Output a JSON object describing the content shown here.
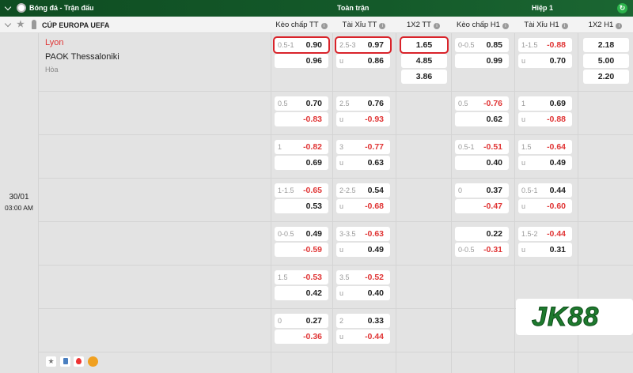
{
  "header": {
    "sport": "Bóng đá - Trận đấu",
    "full_time": "Toàn trận",
    "half": "Hiệp 1"
  },
  "league": "CÚP EUROPA UEFA",
  "columns": [
    "Kèo chấp TT",
    "Tài Xỉu TT",
    "1X2 TT",
    "Kèo chấp H1",
    "Tài Xỉu H1",
    "1X2 H1"
  ],
  "match": {
    "home": "Lyon",
    "away": "PAOK Thessaloniki",
    "draw": "Hòa",
    "date": "30/01",
    "time": "03:00 AM"
  },
  "rows": [
    {
      "hdp": [
        [
          "0.5-1",
          "0.90"
        ],
        [
          "",
          "0.96"
        ]
      ],
      "ou": [
        [
          "2.5-3",
          "0.97"
        ],
        [
          "u",
          "0.86"
        ]
      ],
      "x12": [
        "1.65",
        "4.85",
        "3.86"
      ],
      "hdp1": [
        [
          "0-0.5",
          "0.85"
        ],
        [
          "",
          "0.99"
        ]
      ],
      "ou1": [
        [
          "1-1.5",
          "-0.88"
        ],
        [
          "u",
          "0.70"
        ]
      ],
      "x121": [
        "2.18",
        "5.00",
        "2.20"
      ]
    },
    {
      "hdp": [
        [
          "0.5",
          "0.70"
        ],
        [
          "",
          "-0.83"
        ]
      ],
      "ou": [
        [
          "2.5",
          "0.76"
        ],
        [
          "u",
          "-0.93"
        ]
      ],
      "hdp1": [
        [
          "0.5",
          "-0.76"
        ],
        [
          "",
          "0.62"
        ]
      ],
      "ou1": [
        [
          "1",
          "0.69"
        ],
        [
          "u",
          "-0.88"
        ]
      ]
    },
    {
      "hdp": [
        [
          "1",
          "-0.82"
        ],
        [
          "",
          "0.69"
        ]
      ],
      "ou": [
        [
          "3",
          "-0.77"
        ],
        [
          "u",
          "0.63"
        ]
      ],
      "hdp1": [
        [
          "0.5-1",
          "-0.51"
        ],
        [
          "",
          "0.40"
        ]
      ],
      "ou1": [
        [
          "1.5",
          "-0.64"
        ],
        [
          "u",
          "0.49"
        ]
      ]
    },
    {
      "hdp": [
        [
          "1-1.5",
          "-0.65"
        ],
        [
          "",
          "0.53"
        ]
      ],
      "ou": [
        [
          "2-2.5",
          "0.54"
        ],
        [
          "u",
          "-0.68"
        ]
      ],
      "hdp1": [
        [
          "0",
          "0.37"
        ],
        [
          "",
          "-0.47"
        ]
      ],
      "ou1": [
        [
          "0.5-1",
          "0.44"
        ],
        [
          "u",
          "-0.60"
        ]
      ]
    },
    {
      "hdp": [
        [
          "0-0.5",
          "0.49"
        ],
        [
          "",
          "-0.59"
        ]
      ],
      "ou": [
        [
          "3-3.5",
          "-0.63"
        ],
        [
          "u",
          "0.49"
        ]
      ],
      "hdp1": [
        [
          "",
          "0.22"
        ],
        [
          "0-0.5",
          "-0.31"
        ]
      ],
      "ou1": [
        [
          "1.5-2",
          "-0.44"
        ],
        [
          "u",
          "0.31"
        ]
      ]
    },
    {
      "hdp": [
        [
          "1.5",
          "-0.53"
        ],
        [
          "",
          "0.42"
        ]
      ],
      "ou": [
        [
          "3.5",
          "-0.52"
        ],
        [
          "u",
          "0.40"
        ]
      ]
    },
    {
      "hdp": [
        [
          "0",
          "0.27"
        ],
        [
          "",
          "-0.36"
        ]
      ],
      "ou": [
        [
          "2",
          "0.33"
        ],
        [
          "u",
          "-0.44"
        ]
      ]
    }
  ],
  "watermark": "JK88",
  "colors": {
    "header_green": "#145a2a",
    "negative": "#e03535",
    "highlight": "#d9232a"
  }
}
